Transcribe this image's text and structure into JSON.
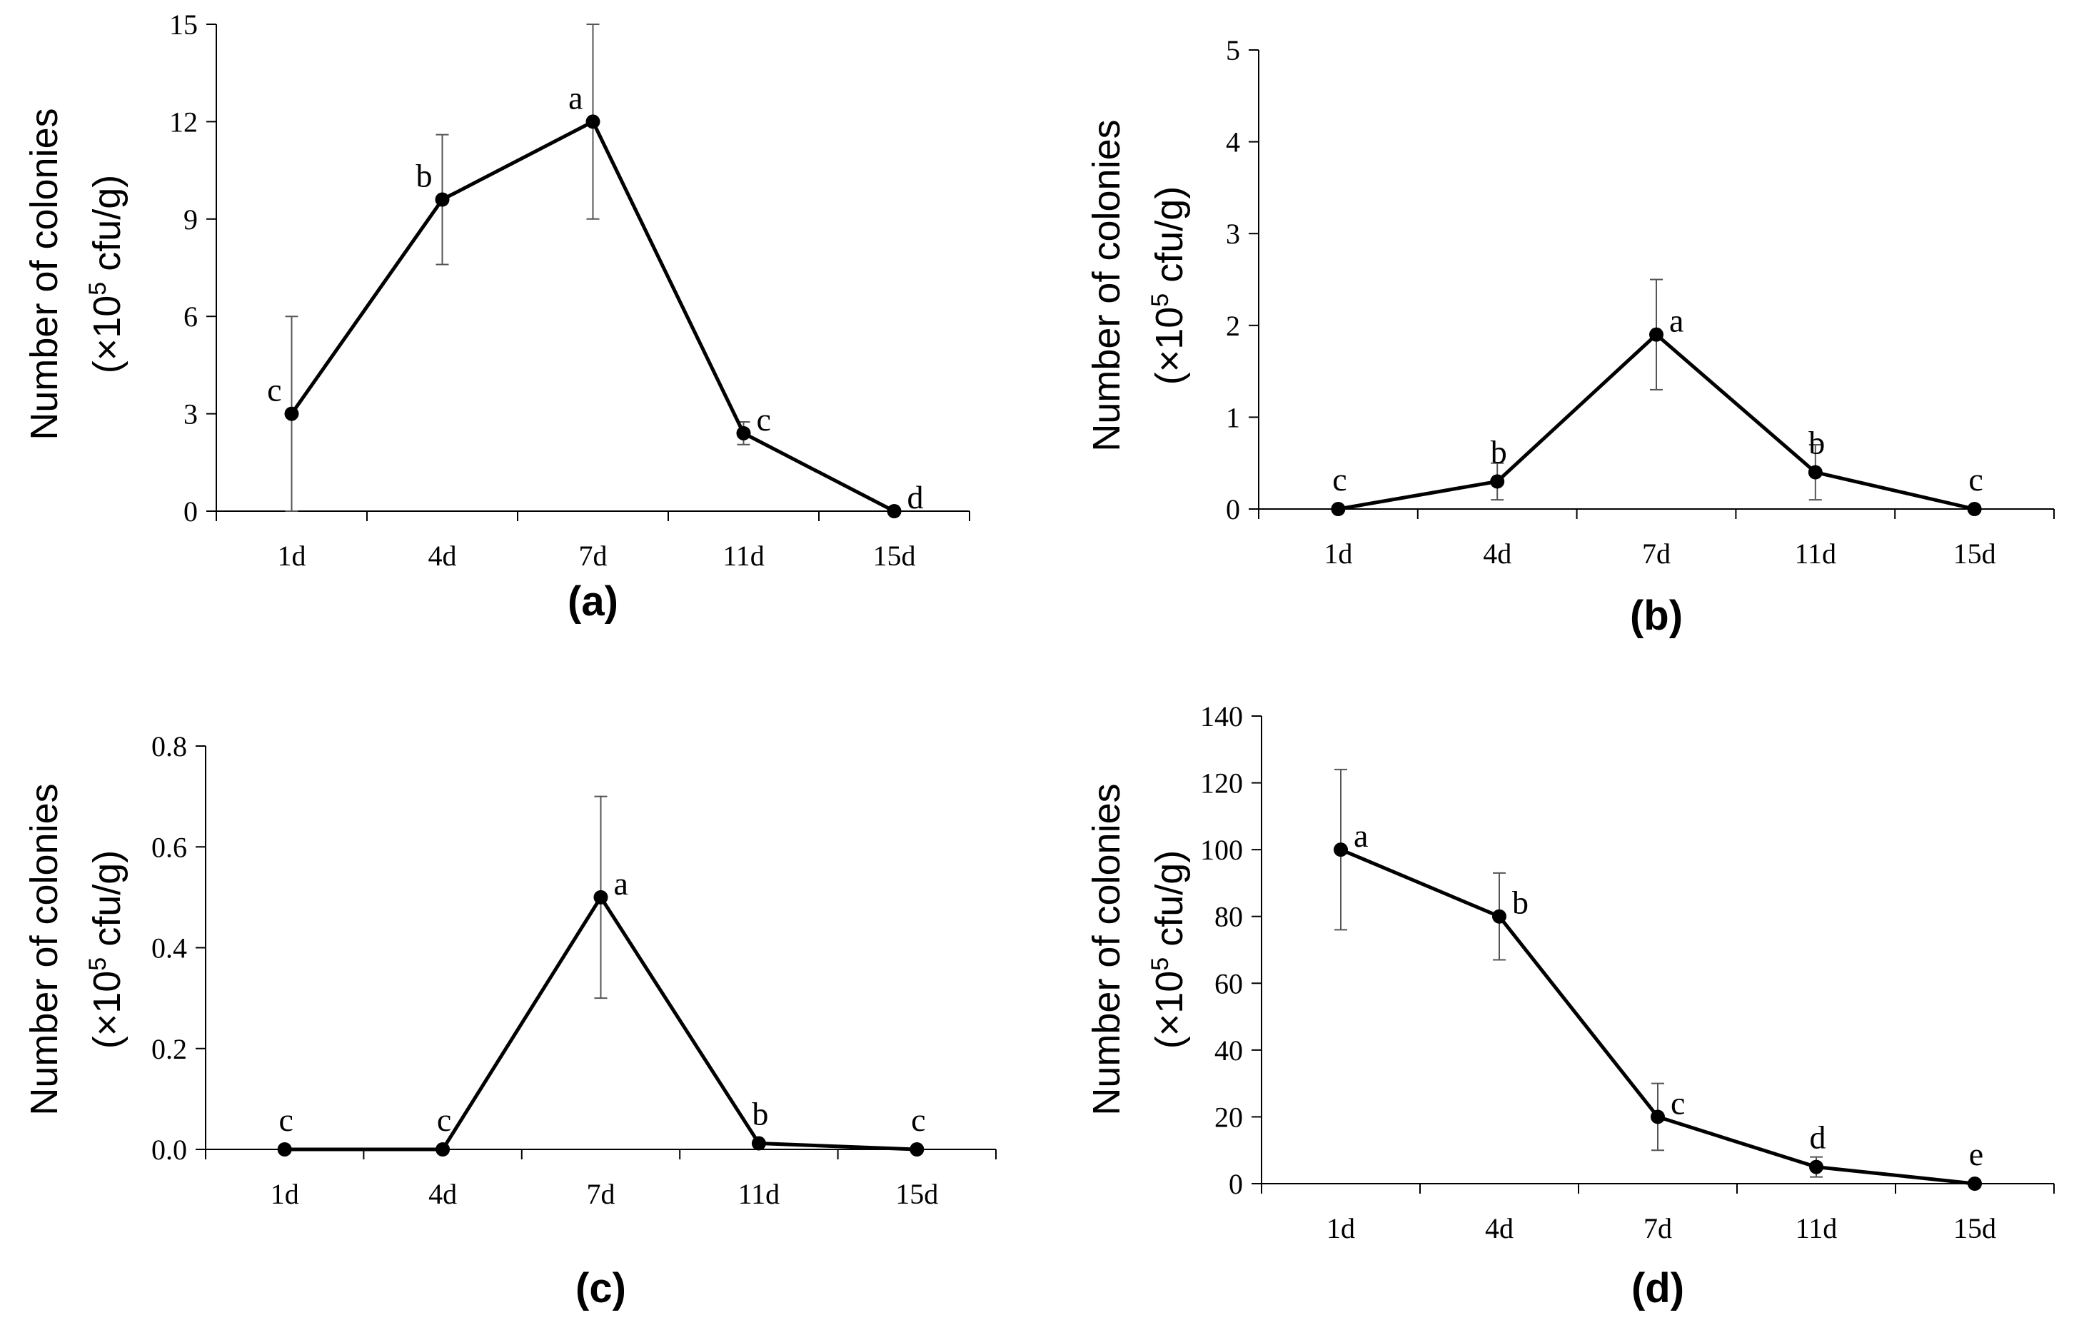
{
  "chart_data": [
    {
      "type": "line",
      "panel_label": "(a)",
      "categories": [
        "1d",
        "4d",
        "7d",
        "11d",
        "15d"
      ],
      "values": [
        3,
        9.6,
        12,
        2.4,
        0
      ],
      "errors": [
        3,
        2,
        3,
        0.35,
        0
      ],
      "letters": [
        "c",
        "b",
        "a",
        "c",
        "d"
      ],
      "ylabel_line1": "Number of colonies",
      "ylabel_line2_pre": "(×10",
      "ylabel_sup": "5",
      "ylabel_line2_post": " cfu/g)",
      "ylim": [
        0,
        15
      ],
      "yticks": [
        "0",
        "3",
        "6",
        "9",
        "12",
        "15"
      ],
      "yticks_values": [
        0,
        3,
        6,
        9,
        12,
        15
      ]
    },
    {
      "type": "line",
      "panel_label": "(b)",
      "categories": [
        "1d",
        "4d",
        "7d",
        "11d",
        "15d"
      ],
      "values": [
        0,
        0.3,
        1.9,
        0.4,
        0
      ],
      "errors": [
        0,
        0.2,
        0.6,
        0.3,
        0
      ],
      "letters": [
        "c",
        "b",
        "a",
        "b",
        "c"
      ],
      "ylabel_line1": "Number of colonies",
      "ylabel_line2_pre": "(×10",
      "ylabel_sup": "5",
      "ylabel_line2_post": " cfu/g)",
      "ylim": [
        0,
        5
      ],
      "yticks": [
        "0",
        "1",
        "2",
        "3",
        "4",
        "5"
      ],
      "yticks_values": [
        0,
        1,
        2,
        3,
        4,
        5
      ]
    },
    {
      "type": "line",
      "panel_label": "(c)",
      "categories": [
        "1d",
        "4d",
        "7d",
        "11d",
        "15d"
      ],
      "values": [
        0,
        0,
        0.5,
        0.012,
        0
      ],
      "errors": [
        0,
        0,
        0.2,
        0,
        0
      ],
      "letters": [
        "c",
        "c",
        "a",
        "b",
        "c"
      ],
      "ylabel_line1": "Number of colonies",
      "ylabel_line2_pre": "(×10",
      "ylabel_sup": "5",
      "ylabel_line2_post": " cfu/g)",
      "ylim": [
        0,
        0.8
      ],
      "yticks": [
        "0.0",
        "0.2",
        "0.4",
        "0.6",
        "0.8"
      ],
      "yticks_values": [
        0,
        0.2,
        0.4,
        0.6,
        0.8
      ]
    },
    {
      "type": "line",
      "panel_label": "(d)",
      "categories": [
        "1d",
        "4d",
        "7d",
        "11d",
        "15d"
      ],
      "values": [
        100,
        80,
        20,
        5,
        0
      ],
      "errors": [
        24,
        13,
        10,
        3,
        0
      ],
      "letters": [
        "a",
        "b",
        "c",
        "d",
        "e"
      ],
      "ylabel_line1": "Number of colonies",
      "ylabel_line2_pre": "(×10",
      "ylabel_sup": "5",
      "ylabel_line2_post": " cfu/g)",
      "ylim": [
        0,
        140
      ],
      "yticks": [
        "0",
        "20",
        "40",
        "60",
        "80",
        "100",
        "120",
        "140"
      ],
      "yticks_values": [
        0,
        20,
        40,
        60,
        80,
        100,
        120,
        140
      ]
    }
  ]
}
